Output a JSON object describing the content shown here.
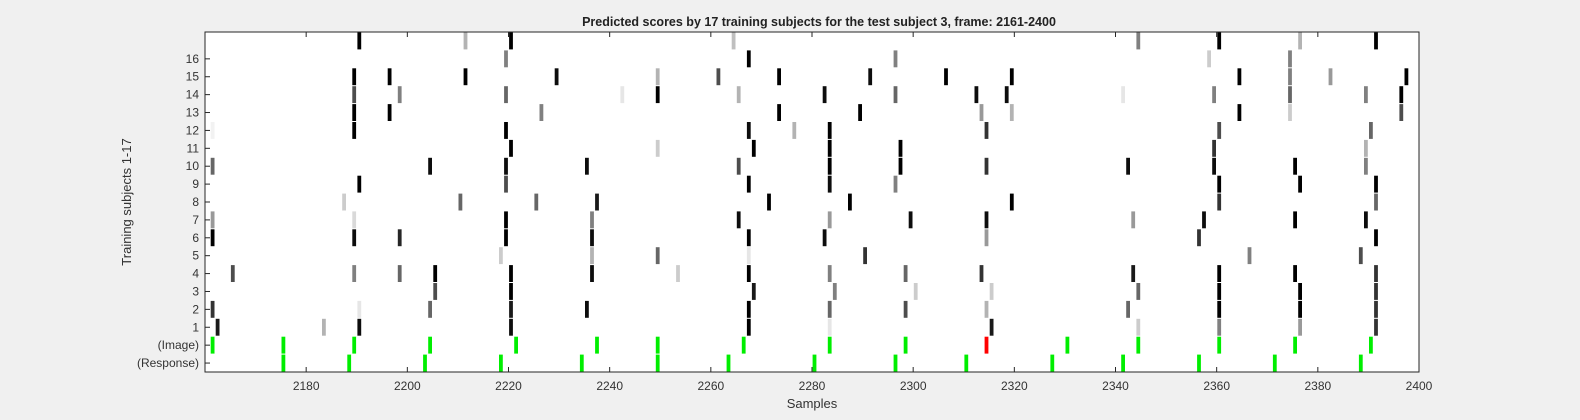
{
  "chart_data": {
    "type": "heatmap",
    "title": "Predicted scores by 17 training subjects for the test subject 3, frame: 2161-2400",
    "xlabel": "Samples",
    "ylabel": "Training subjects 1-17",
    "xlim": [
      2161,
      2400
    ],
    "xticks": [
      2180,
      2200,
      2220,
      2240,
      2260,
      2280,
      2300,
      2320,
      2340,
      2360,
      2380,
      2400
    ],
    "row_labels": [
      "(Response)",
      "(Image)",
      "1",
      "2",
      "3",
      "4",
      "5",
      "6",
      "7",
      "8",
      "9",
      "10",
      "11",
      "12",
      "13",
      "14",
      "15",
      "16",
      ""
    ],
    "grid": false,
    "colors": {
      "background": "#ffffff",
      "axes_face": "#ffffff",
      "figure_face": "#f0f0f0",
      "marker_green": "#00ee00",
      "marker_red": "#ff0000"
    },
    "response_samples": [
      2176,
      2189,
      2204,
      2219,
      2235,
      2250,
      2264,
      2281,
      2297,
      2311,
      2328,
      2342,
      2357,
      2372,
      2389
    ],
    "image_samples": [
      2162,
      2176,
      2190,
      2205,
      2222,
      2238,
      2250,
      2267,
      2284,
      2299,
      2315,
      2331,
      2345,
      2361,
      2376,
      2391
    ],
    "image_highlight_samples": [
      2315
    ],
    "score_cells": [
      {
        "row": 1,
        "x": 2163,
        "v": 0.9
      },
      {
        "row": 1,
        "x": 2184,
        "v": 0.3
      },
      {
        "row": 1,
        "x": 2191,
        "v": 0.95
      },
      {
        "row": 1,
        "x": 2221,
        "v": 0.95
      },
      {
        "row": 1,
        "x": 2268,
        "v": 1.0
      },
      {
        "row": 1,
        "x": 2284,
        "v": 0.1
      },
      {
        "row": 1,
        "x": 2316,
        "v": 0.9
      },
      {
        "row": 1,
        "x": 2345,
        "v": 0.2
      },
      {
        "row": 1,
        "x": 2361,
        "v": 0.5
      },
      {
        "row": 1,
        "x": 2377,
        "v": 0.4
      },
      {
        "row": 1,
        "x": 2392,
        "v": 0.8
      },
      {
        "row": 2,
        "x": 2162,
        "v": 0.8
      },
      {
        "row": 2,
        "x": 2191,
        "v": 0.1
      },
      {
        "row": 2,
        "x": 2205,
        "v": 0.6
      },
      {
        "row": 2,
        "x": 2221,
        "v": 0.9
      },
      {
        "row": 2,
        "x": 2236,
        "v": 0.95
      },
      {
        "row": 2,
        "x": 2268,
        "v": 1.0
      },
      {
        "row": 2,
        "x": 2284,
        "v": 0.6
      },
      {
        "row": 2,
        "x": 2299,
        "v": 0.7
      },
      {
        "row": 2,
        "x": 2315,
        "v": 0.3
      },
      {
        "row": 2,
        "x": 2343,
        "v": 0.6
      },
      {
        "row": 2,
        "x": 2361,
        "v": 1.0
      },
      {
        "row": 2,
        "x": 2377,
        "v": 1.0
      },
      {
        "row": 2,
        "x": 2392,
        "v": 0.8
      },
      {
        "row": 3,
        "x": 2206,
        "v": 0.7
      },
      {
        "row": 3,
        "x": 2221,
        "v": 1.0
      },
      {
        "row": 3,
        "x": 2269,
        "v": 0.9
      },
      {
        "row": 3,
        "x": 2285,
        "v": 0.5
      },
      {
        "row": 3,
        "x": 2301,
        "v": 0.2
      },
      {
        "row": 3,
        "x": 2316,
        "v": 0.2
      },
      {
        "row": 3,
        "x": 2345,
        "v": 0.6
      },
      {
        "row": 3,
        "x": 2361,
        "v": 1.0
      },
      {
        "row": 3,
        "x": 2377,
        "v": 1.0
      },
      {
        "row": 3,
        "x": 2392,
        "v": 0.8
      },
      {
        "row": 4,
        "x": 2166,
        "v": 0.7
      },
      {
        "row": 4,
        "x": 2190,
        "v": 0.5
      },
      {
        "row": 4,
        "x": 2199,
        "v": 0.6
      },
      {
        "row": 4,
        "x": 2206,
        "v": 1.0
      },
      {
        "row": 4,
        "x": 2221,
        "v": 1.0
      },
      {
        "row": 4,
        "x": 2237,
        "v": 0.95
      },
      {
        "row": 4,
        "x": 2254,
        "v": 0.2
      },
      {
        "row": 4,
        "x": 2268,
        "v": 1.0
      },
      {
        "row": 4,
        "x": 2284,
        "v": 0.5
      },
      {
        "row": 4,
        "x": 2299,
        "v": 0.6
      },
      {
        "row": 4,
        "x": 2314,
        "v": 0.8
      },
      {
        "row": 4,
        "x": 2344,
        "v": 0.9
      },
      {
        "row": 4,
        "x": 2361,
        "v": 1.0
      },
      {
        "row": 4,
        "x": 2376,
        "v": 1.0
      },
      {
        "row": 4,
        "x": 2392,
        "v": 0.8
      },
      {
        "row": 5,
        "x": 2219,
        "v": 0.2
      },
      {
        "row": 5,
        "x": 2237,
        "v": 0.3
      },
      {
        "row": 5,
        "x": 2250,
        "v": 0.6
      },
      {
        "row": 5,
        "x": 2268,
        "v": 0.1
      },
      {
        "row": 5,
        "x": 2291,
        "v": 0.8
      },
      {
        "row": 5,
        "x": 2367,
        "v": 0.5
      },
      {
        "row": 5,
        "x": 2389,
        "v": 0.7
      },
      {
        "row": 6,
        "x": 2162,
        "v": 1.0
      },
      {
        "row": 6,
        "x": 2190,
        "v": 0.95
      },
      {
        "row": 6,
        "x": 2199,
        "v": 0.85
      },
      {
        "row": 6,
        "x": 2220,
        "v": 1.0
      },
      {
        "row": 6,
        "x": 2237,
        "v": 0.95
      },
      {
        "row": 6,
        "x": 2268,
        "v": 1.0
      },
      {
        "row": 6,
        "x": 2283,
        "v": 0.95
      },
      {
        "row": 6,
        "x": 2315,
        "v": 0.4
      },
      {
        "row": 6,
        "x": 2357,
        "v": 0.8
      },
      {
        "row": 6,
        "x": 2392,
        "v": 1.0
      },
      {
        "row": 7,
        "x": 2162,
        "v": 0.4
      },
      {
        "row": 7,
        "x": 2190,
        "v": 0.15
      },
      {
        "row": 7,
        "x": 2220,
        "v": 1.0
      },
      {
        "row": 7,
        "x": 2237,
        "v": 0.5
      },
      {
        "row": 7,
        "x": 2266,
        "v": 0.95
      },
      {
        "row": 7,
        "x": 2284,
        "v": 0.4
      },
      {
        "row": 7,
        "x": 2300,
        "v": 0.95
      },
      {
        "row": 7,
        "x": 2315,
        "v": 0.95
      },
      {
        "row": 7,
        "x": 2344,
        "v": 0.4
      },
      {
        "row": 7,
        "x": 2358,
        "v": 0.95
      },
      {
        "row": 7,
        "x": 2376,
        "v": 1.0
      },
      {
        "row": 7,
        "x": 2390,
        "v": 0.95
      },
      {
        "row": 8,
        "x": 2188,
        "v": 0.2
      },
      {
        "row": 8,
        "x": 2211,
        "v": 0.6
      },
      {
        "row": 8,
        "x": 2226,
        "v": 0.6
      },
      {
        "row": 8,
        "x": 2238,
        "v": 0.9
      },
      {
        "row": 8,
        "x": 2272,
        "v": 1.0
      },
      {
        "row": 8,
        "x": 2288,
        "v": 1.0
      },
      {
        "row": 8,
        "x": 2320,
        "v": 1.0
      },
      {
        "row": 8,
        "x": 2361,
        "v": 0.8
      },
      {
        "row": 8,
        "x": 2392,
        "v": 0.6
      },
      {
        "row": 9,
        "x": 2191,
        "v": 1.0
      },
      {
        "row": 9,
        "x": 2220,
        "v": 0.7
      },
      {
        "row": 9,
        "x": 2268,
        "v": 1.0
      },
      {
        "row": 9,
        "x": 2284,
        "v": 0.95
      },
      {
        "row": 9,
        "x": 2297,
        "v": 0.5
      },
      {
        "row": 9,
        "x": 2361,
        "v": 1.0
      },
      {
        "row": 9,
        "x": 2377,
        "v": 1.0
      },
      {
        "row": 9,
        "x": 2392,
        "v": 1.0
      },
      {
        "row": 10,
        "x": 2162,
        "v": 0.6
      },
      {
        "row": 10,
        "x": 2205,
        "v": 0.95
      },
      {
        "row": 10,
        "x": 2220,
        "v": 0.95
      },
      {
        "row": 10,
        "x": 2236,
        "v": 0.95
      },
      {
        "row": 10,
        "x": 2266,
        "v": 0.7
      },
      {
        "row": 10,
        "x": 2284,
        "v": 1.0
      },
      {
        "row": 10,
        "x": 2298,
        "v": 1.0
      },
      {
        "row": 10,
        "x": 2315,
        "v": 0.8
      },
      {
        "row": 10,
        "x": 2343,
        "v": 0.95
      },
      {
        "row": 10,
        "x": 2360,
        "v": 0.95
      },
      {
        "row": 10,
        "x": 2376,
        "v": 1.0
      },
      {
        "row": 10,
        "x": 2390,
        "v": 0.5
      },
      {
        "row": 11,
        "x": 2221,
        "v": 1.0
      },
      {
        "row": 11,
        "x": 2250,
        "v": 0.2
      },
      {
        "row": 11,
        "x": 2269,
        "v": 1.0
      },
      {
        "row": 11,
        "x": 2284,
        "v": 1.0
      },
      {
        "row": 11,
        "x": 2298,
        "v": 1.0
      },
      {
        "row": 11,
        "x": 2360,
        "v": 0.8
      },
      {
        "row": 11,
        "x": 2390,
        "v": 0.3
      },
      {
        "row": 12,
        "x": 2162,
        "v": 0.05
      },
      {
        "row": 12,
        "x": 2190,
        "v": 1.0
      },
      {
        "row": 12,
        "x": 2220,
        "v": 1.0
      },
      {
        "row": 12,
        "x": 2268,
        "v": 0.95
      },
      {
        "row": 12,
        "x": 2277,
        "v": 0.3
      },
      {
        "row": 12,
        "x": 2284,
        "v": 1.0
      },
      {
        "row": 12,
        "x": 2315,
        "v": 0.8
      },
      {
        "row": 12,
        "x": 2361,
        "v": 0.7
      },
      {
        "row": 12,
        "x": 2391,
        "v": 0.6
      },
      {
        "row": 13,
        "x": 2190,
        "v": 1.0
      },
      {
        "row": 13,
        "x": 2197,
        "v": 1.0
      },
      {
        "row": 13,
        "x": 2227,
        "v": 0.5
      },
      {
        "row": 13,
        "x": 2274,
        "v": 1.0
      },
      {
        "row": 13,
        "x": 2290,
        "v": 1.0
      },
      {
        "row": 13,
        "x": 2314,
        "v": 0.4
      },
      {
        "row": 13,
        "x": 2320,
        "v": 0.3
      },
      {
        "row": 13,
        "x": 2365,
        "v": 1.0
      },
      {
        "row": 13,
        "x": 2375,
        "v": 0.2
      },
      {
        "row": 13,
        "x": 2397,
        "v": 0.7
      },
      {
        "row": 14,
        "x": 2190,
        "v": 0.7
      },
      {
        "row": 14,
        "x": 2199,
        "v": 0.5
      },
      {
        "row": 14,
        "x": 2220,
        "v": 0.6
      },
      {
        "row": 14,
        "x": 2243,
        "v": 0.1
      },
      {
        "row": 14,
        "x": 2250,
        "v": 1.0
      },
      {
        "row": 14,
        "x": 2266,
        "v": 0.3
      },
      {
        "row": 14,
        "x": 2283,
        "v": 0.95
      },
      {
        "row": 14,
        "x": 2297,
        "v": 0.6
      },
      {
        "row": 14,
        "x": 2313,
        "v": 0.95
      },
      {
        "row": 14,
        "x": 2319,
        "v": 0.95
      },
      {
        "row": 14,
        "x": 2342,
        "v": 0.1
      },
      {
        "row": 14,
        "x": 2360,
        "v": 0.5
      },
      {
        "row": 14,
        "x": 2375,
        "v": 0.6
      },
      {
        "row": 14,
        "x": 2390,
        "v": 0.5
      },
      {
        "row": 14,
        "x": 2397,
        "v": 1.0
      },
      {
        "row": 15,
        "x": 2190,
        "v": 1.0
      },
      {
        "row": 15,
        "x": 2197,
        "v": 1.0
      },
      {
        "row": 15,
        "x": 2212,
        "v": 1.0
      },
      {
        "row": 15,
        "x": 2230,
        "v": 0.95
      },
      {
        "row": 15,
        "x": 2250,
        "v": 0.3
      },
      {
        "row": 15,
        "x": 2262,
        "v": 0.7
      },
      {
        "row": 15,
        "x": 2274,
        "v": 1.0
      },
      {
        "row": 15,
        "x": 2292,
        "v": 0.95
      },
      {
        "row": 15,
        "x": 2307,
        "v": 1.0
      },
      {
        "row": 15,
        "x": 2320,
        "v": 1.0
      },
      {
        "row": 15,
        "x": 2365,
        "v": 1.0
      },
      {
        "row": 15,
        "x": 2375,
        "v": 0.5
      },
      {
        "row": 15,
        "x": 2383,
        "v": 0.4
      },
      {
        "row": 15,
        "x": 2398,
        "v": 1.0
      },
      {
        "row": 16,
        "x": 2220,
        "v": 0.5
      },
      {
        "row": 16,
        "x": 2268,
        "v": 1.0
      },
      {
        "row": 16,
        "x": 2297,
        "v": 0.5
      },
      {
        "row": 16,
        "x": 2359,
        "v": 0.2
      },
      {
        "row": 16,
        "x": 2375,
        "v": 0.5
      },
      {
        "row": 17,
        "x": 2191,
        "v": 1.0
      },
      {
        "row": 17,
        "x": 2212,
        "v": 0.3
      },
      {
        "row": 17,
        "x": 2221,
        "v": 1.0
      },
      {
        "row": 17,
        "x": 2265,
        "v": 0.25
      },
      {
        "row": 17,
        "x": 2345,
        "v": 0.5
      },
      {
        "row": 17,
        "x": 2361,
        "v": 1.0
      },
      {
        "row": 17,
        "x": 2377,
        "v": 0.3
      },
      {
        "row": 17,
        "x": 2392,
        "v": 1.0
      }
    ]
  }
}
